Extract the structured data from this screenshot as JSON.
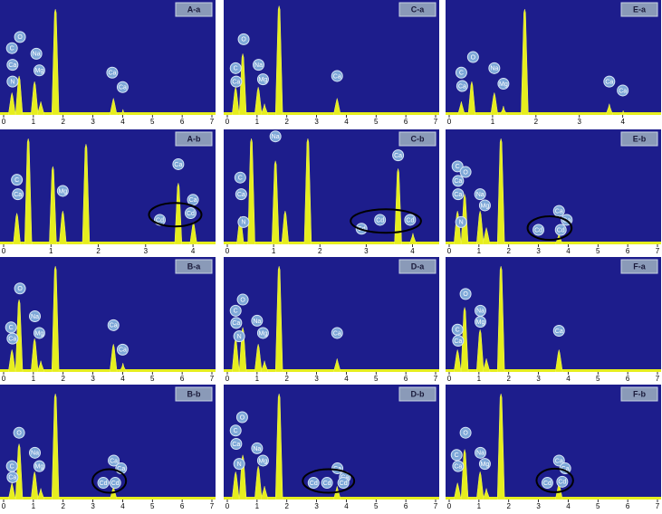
{
  "chart_data": [
    {
      "type": "spectrum",
      "title": "A-a",
      "xlim": [
        0,
        7
      ],
      "xticks": [
        0,
        1,
        2,
        3,
        4,
        5,
        6,
        7
      ],
      "ylim": [
        0,
        100
      ],
      "color": "#e6ee1e",
      "x": [
        0.28,
        0.52,
        1.04,
        1.25,
        1.74,
        3.69,
        4.01
      ],
      "values": [
        20,
        35,
        30,
        12,
        95,
        15,
        5
      ],
      "labels": [
        {
          "text": "C",
          "x": 0.28,
          "y": 60
        },
        {
          "text": "Ca",
          "x": 0.3,
          "y": 45
        },
        {
          "text": "N",
          "x": 0.3,
          "y": 30
        },
        {
          "text": "O",
          "x": 0.55,
          "y": 70
        },
        {
          "text": "Na",
          "x": 1.1,
          "y": 55
        },
        {
          "text": "Mg",
          "x": 1.2,
          "y": 40
        },
        {
          "text": "Ca",
          "x": 3.65,
          "y": 38
        },
        {
          "text": "Ca",
          "x": 4.0,
          "y": 25
        }
      ]
    },
    {
      "type": "spectrum",
      "title": "C-a",
      "xlim": [
        0,
        7
      ],
      "xticks": [
        0,
        1,
        2,
        3,
        4,
        5,
        6,
        7
      ],
      "ylim": [
        0,
        100
      ],
      "color": "#e6ee1e",
      "x": [
        0.28,
        0.52,
        1.04,
        1.25,
        1.74,
        3.69
      ],
      "values": [
        25,
        55,
        25,
        10,
        98,
        15
      ],
      "labels": [
        {
          "text": "C",
          "x": 0.28,
          "y": 42
        },
        {
          "text": "Ca",
          "x": 0.3,
          "y": 30
        },
        {
          "text": "O",
          "x": 0.55,
          "y": 68
        },
        {
          "text": "Na",
          "x": 1.05,
          "y": 45
        },
        {
          "text": "Mg",
          "x": 1.2,
          "y": 32
        },
        {
          "text": "Ca",
          "x": 3.69,
          "y": 35
        }
      ]
    },
    {
      "type": "spectrum",
      "title": "E-a",
      "xlim": [
        0,
        4.8
      ],
      "xticks": [
        0,
        1,
        2,
        3,
        4
      ],
      "ylim": [
        0,
        100
      ],
      "color": "#e6ee1e",
      "x": [
        0.28,
        0.52,
        1.04,
        1.25,
        1.74,
        3.69,
        4.01
      ],
      "values": [
        12,
        30,
        20,
        8,
        95,
        10,
        4
      ],
      "labels": [
        {
          "text": "C",
          "x": 0.28,
          "y": 38
        },
        {
          "text": "Ca",
          "x": 0.3,
          "y": 26
        },
        {
          "text": "O",
          "x": 0.55,
          "y": 52
        },
        {
          "text": "Na",
          "x": 1.04,
          "y": 42
        },
        {
          "text": "Mg",
          "x": 1.25,
          "y": 28
        },
        {
          "text": "Ca",
          "x": 3.69,
          "y": 30
        },
        {
          "text": "Ca",
          "x": 4.0,
          "y": 22
        }
      ]
    },
    {
      "type": "spectrum",
      "title": "A-b",
      "xlim": [
        0,
        4.4
      ],
      "xticks": [
        0,
        1,
        2,
        3,
        4
      ],
      "ylim": [
        0,
        100
      ],
      "color": "#e6ee1e",
      "x": [
        0.28,
        0.52,
        1.04,
        1.25,
        1.74,
        3.69,
        4.01
      ],
      "values": [
        28,
        95,
        70,
        30,
        90,
        55,
        20
      ],
      "labels": [
        {
          "text": "C",
          "x": 0.28,
          "y": 58
        },
        {
          "text": "Ca",
          "x": 0.3,
          "y": 45
        },
        {
          "text": "Mg",
          "x": 1.25,
          "y": 48
        },
        {
          "text": "Ca",
          "x": 3.69,
          "y": 72
        },
        {
          "text": "Ca",
          "x": 4.0,
          "y": 40
        },
        {
          "text": "Cd",
          "x": 3.3,
          "y": 22
        },
        {
          "text": "Cd",
          "x": 3.95,
          "y": 28
        }
      ]
    },
    {
      "type": "spectrum",
      "title": "C-b",
      "xlim": [
        0,
        4.5
      ],
      "xticks": [
        0,
        1,
        2,
        3,
        4
      ],
      "ylim": [
        0,
        100
      ],
      "color": "#e6ee1e",
      "x": [
        0.28,
        0.52,
        1.04,
        1.25,
        1.74,
        3.69,
        4.01
      ],
      "values": [
        25,
        95,
        75,
        30,
        95,
        68,
        10
      ],
      "labels": [
        {
          "text": "C",
          "x": 0.28,
          "y": 60
        },
        {
          "text": "Ca",
          "x": 0.3,
          "y": 45
        },
        {
          "text": "N",
          "x": 0.35,
          "y": 20
        },
        {
          "text": "Na",
          "x": 1.04,
          "y": 97
        },
        {
          "text": "Ca",
          "x": 3.69,
          "y": 80
        },
        {
          "text": "Cd",
          "x": 2.9,
          "y": 14
        },
        {
          "text": "Cd",
          "x": 3.3,
          "y": 22
        },
        {
          "text": "Cd",
          "x": 3.95,
          "y": 22
        }
      ]
    },
    {
      "type": "spectrum",
      "title": "E-b",
      "xlim": [
        0,
        7
      ],
      "xticks": [
        0,
        1,
        2,
        3,
        4,
        5,
        6,
        7
      ],
      "ylim": [
        0,
        100
      ],
      "color": "#e6ee1e",
      "x": [
        0.28,
        0.52,
        1.04,
        1.25,
        1.74,
        3.69
      ],
      "values": [
        30,
        45,
        30,
        15,
        95,
        10
      ],
      "labels": [
        {
          "text": "C",
          "x": 0.28,
          "y": 70
        },
        {
          "text": "Ca",
          "x": 0.3,
          "y": 57
        },
        {
          "text": "O",
          "x": 0.55,
          "y": 65
        },
        {
          "text": "Ca",
          "x": 0.3,
          "y": 45
        },
        {
          "text": "N",
          "x": 0.4,
          "y": 20
        },
        {
          "text": "Na",
          "x": 1.04,
          "y": 45
        },
        {
          "text": "Mg",
          "x": 1.2,
          "y": 35
        },
        {
          "text": "Cd",
          "x": 3.0,
          "y": 13
        },
        {
          "text": "Ca",
          "x": 3.69,
          "y": 30
        },
        {
          "text": "Ca",
          "x": 3.95,
          "y": 22
        },
        {
          "text": "Cd",
          "x": 3.75,
          "y": 13
        }
      ]
    },
    {
      "type": "spectrum",
      "title": "B-a",
      "xlim": [
        0,
        7
      ],
      "xticks": [
        0,
        1,
        2,
        3,
        4,
        5,
        6,
        7
      ],
      "ylim": [
        0,
        100
      ],
      "color": "#e6ee1e",
      "x": [
        0.28,
        0.52,
        1.04,
        1.25,
        1.74,
        3.69,
        4.01
      ],
      "values": [
        20,
        65,
        30,
        10,
        95,
        25,
        8
      ],
      "labels": [
        {
          "text": "C",
          "x": 0.25,
          "y": 40
        },
        {
          "text": "Ca",
          "x": 0.3,
          "y": 30
        },
        {
          "text": "O",
          "x": 0.55,
          "y": 75
        },
        {
          "text": "Na",
          "x": 1.05,
          "y": 50
        },
        {
          "text": "Mg",
          "x": 1.2,
          "y": 35
        },
        {
          "text": "Ca",
          "x": 3.69,
          "y": 42
        },
        {
          "text": "Ca",
          "x": 4.0,
          "y": 20
        }
      ]
    },
    {
      "type": "spectrum",
      "title": "D-a",
      "xlim": [
        0,
        7
      ],
      "xticks": [
        0,
        1,
        2,
        3,
        4,
        5,
        6,
        7
      ],
      "ylim": [
        0,
        100
      ],
      "color": "#e6ee1e",
      "x": [
        0.28,
        0.52,
        1.04,
        1.25,
        1.74,
        3.69
      ],
      "values": [
        30,
        40,
        25,
        10,
        95,
        12
      ],
      "labels": [
        {
          "text": "C",
          "x": 0.28,
          "y": 55
        },
        {
          "text": "Ca",
          "x": 0.3,
          "y": 44
        },
        {
          "text": "N",
          "x": 0.4,
          "y": 32
        },
        {
          "text": "O",
          "x": 0.52,
          "y": 65
        },
        {
          "text": "Na",
          "x": 1.0,
          "y": 46
        },
        {
          "text": "Mg",
          "x": 1.2,
          "y": 35
        },
        {
          "text": "Ca",
          "x": 3.69,
          "y": 35
        }
      ]
    },
    {
      "type": "spectrum",
      "title": "F-a",
      "xlim": [
        0,
        7
      ],
      "xticks": [
        0,
        1,
        2,
        3,
        4,
        5,
        6,
        7
      ],
      "ylim": [
        0,
        100
      ],
      "color": "#e6ee1e",
      "x": [
        0.28,
        0.52,
        1.04,
        1.25,
        1.74,
        3.69
      ],
      "values": [
        20,
        58,
        38,
        12,
        95,
        20
      ],
      "labels": [
        {
          "text": "C",
          "x": 0.28,
          "y": 38
        },
        {
          "text": "Ca",
          "x": 0.3,
          "y": 28
        },
        {
          "text": "O",
          "x": 0.55,
          "y": 70
        },
        {
          "text": "Na",
          "x": 1.05,
          "y": 55
        },
        {
          "text": "Mg",
          "x": 1.05,
          "y": 45
        },
        {
          "text": "Ca",
          "x": 3.69,
          "y": 37
        }
      ]
    },
    {
      "type": "spectrum",
      "title": "B-b",
      "xlim": [
        0,
        7
      ],
      "xticks": [
        0,
        1,
        2,
        3,
        4,
        5,
        6,
        7
      ],
      "ylim": [
        0,
        100
      ],
      "color": "#e6ee1e",
      "x": [
        0.28,
        0.52,
        1.04,
        1.25,
        1.74,
        3.69
      ],
      "values": [
        15,
        50,
        25,
        10,
        95,
        12
      ],
      "labels": [
        {
          "text": "C",
          "x": 0.28,
          "y": 30
        },
        {
          "text": "Ca",
          "x": 0.3,
          "y": 20
        },
        {
          "text": "O",
          "x": 0.52,
          "y": 60
        },
        {
          "text": "Na",
          "x": 1.05,
          "y": 42
        },
        {
          "text": "Mg",
          "x": 1.2,
          "y": 30
        },
        {
          "text": "Cd",
          "x": 3.35,
          "y": 15
        },
        {
          "text": "Ca",
          "x": 3.7,
          "y": 35
        },
        {
          "text": "Ca",
          "x": 3.95,
          "y": 28
        },
        {
          "text": "Cd",
          "x": 3.75,
          "y": 15
        }
      ]
    },
    {
      "type": "spectrum",
      "title": "D-b",
      "xlim": [
        0,
        7
      ],
      "xticks": [
        0,
        1,
        2,
        3,
        4,
        5,
        6,
        7
      ],
      "ylim": [
        0,
        100
      ],
      "color": "#e6ee1e",
      "x": [
        0.28,
        0.52,
        1.04,
        1.25,
        1.74,
        3.69
      ],
      "values": [
        25,
        40,
        30,
        12,
        95,
        12
      ],
      "labels": [
        {
          "text": "C",
          "x": 0.28,
          "y": 62
        },
        {
          "text": "Ca",
          "x": 0.3,
          "y": 50
        },
        {
          "text": "O",
          "x": 0.5,
          "y": 74
        },
        {
          "text": "N",
          "x": 0.4,
          "y": 32
        },
        {
          "text": "Na",
          "x": 1.0,
          "y": 46
        },
        {
          "text": "Mg",
          "x": 1.2,
          "y": 35
        },
        {
          "text": "Cd",
          "x": 2.9,
          "y": 15
        },
        {
          "text": "Cd",
          "x": 3.35,
          "y": 15
        },
        {
          "text": "Ca",
          "x": 3.7,
          "y": 28
        },
        {
          "text": "Ca",
          "x": 3.95,
          "y": 20
        },
        {
          "text": "Cd",
          "x": 3.9,
          "y": 15
        }
      ]
    },
    {
      "type": "spectrum",
      "title": "F-b",
      "xlim": [
        0,
        7
      ],
      "xticks": [
        0,
        1,
        2,
        3,
        4,
        5,
        6,
        7
      ],
      "ylim": [
        0,
        100
      ],
      "color": "#e6ee1e",
      "x": [
        0.28,
        0.52,
        1.04,
        1.25,
        1.74,
        3.69
      ],
      "values": [
        15,
        45,
        25,
        10,
        95,
        15
      ],
      "labels": [
        {
          "text": "C",
          "x": 0.25,
          "y": 40
        },
        {
          "text": "Ca",
          "x": 0.3,
          "y": 30
        },
        {
          "text": "O",
          "x": 0.55,
          "y": 60
        },
        {
          "text": "Na",
          "x": 1.05,
          "y": 42
        },
        {
          "text": "Mg",
          "x": 1.2,
          "y": 32
        },
        {
          "text": "Cd",
          "x": 3.3,
          "y": 15
        },
        {
          "text": "Ca",
          "x": 3.69,
          "y": 35
        },
        {
          "text": "Ca",
          "x": 3.9,
          "y": 28
        },
        {
          "text": "Cd",
          "x": 3.8,
          "y": 16
        }
      ]
    }
  ]
}
